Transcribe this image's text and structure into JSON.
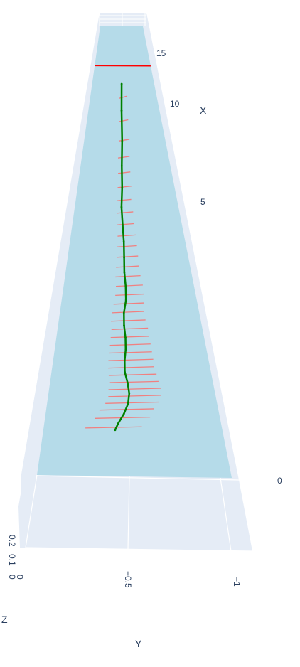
{
  "chart_data": {
    "type": "scatter3d",
    "axes": {
      "x": {
        "title": "X",
        "range": [
          0,
          16.8
        ],
        "ticks": [
          "0",
          "5",
          "10",
          "15"
        ]
      },
      "y": {
        "title": "Y",
        "range": [
          0,
          -1.2
        ],
        "ticks": [
          "0",
          "−0.5",
          "−1"
        ]
      },
      "z": {
        "title": "Z",
        "range": [
          0,
          0.25
        ],
        "ticks": [
          "0",
          "0.1",
          "0.2"
        ]
      }
    },
    "colors": {
      "scene_bg": "#e5ecf6",
      "grid": "#ffffff",
      "plane": "#add8e6",
      "path": "#008000",
      "vectors": "#f08080",
      "boundary": "#ff0000"
    },
    "plane": {
      "name": "ground plane",
      "z": 0
    },
    "boundary_line": {
      "x": 16.6,
      "y_range": [
        0,
        -1.2
      ]
    },
    "path": {
      "x": [
        3.0,
        3.4,
        4.0,
        4.6,
        5.2,
        5.8,
        6.4,
        7.0,
        7.6,
        8.2,
        8.8,
        9.4,
        10.0,
        10.6,
        11.2,
        11.8,
        12.4,
        13.0,
        13.6,
        14.2,
        14.8,
        15.4,
        16.0,
        16.4
      ],
      "y": [
        -0.48,
        -0.5,
        -0.54,
        -0.57,
        -0.58,
        -0.57,
        -0.55,
        -0.55,
        -0.56,
        -0.56,
        -0.55,
        -0.55,
        -0.57,
        -0.57,
        -0.56,
        -0.56,
        -0.56,
        -0.55,
        -0.54,
        -0.55,
        -0.55,
        -0.56,
        -0.56,
        -0.57
      ]
    },
    "vectors": [
      {
        "x": 3.1,
        "y": -0.43,
        "dx": 0.8,
        "dy": 0.3
      },
      {
        "x": 3.7,
        "y": -0.49,
        "dx": 0.8,
        "dy": 0.3
      },
      {
        "x": 4.2,
        "y": -0.52,
        "dx": 0.8,
        "dy": 0.3
      },
      {
        "x": 4.6,
        "y": -0.56,
        "dx": 0.8,
        "dy": 0.3
      },
      {
        "x": 5.0,
        "y": -0.58,
        "dx": 0.8,
        "dy": 0.3
      },
      {
        "x": 5.4,
        "y": -0.58,
        "dx": 0.8,
        "dy": 0.3
      },
      {
        "x": 5.8,
        "y": -0.58,
        "dx": 0.7,
        "dy": 0.28
      },
      {
        "x": 6.2,
        "y": -0.57,
        "dx": 0.7,
        "dy": 0.28
      },
      {
        "x": 6.6,
        "y": -0.56,
        "dx": 0.7,
        "dy": 0.27
      },
      {
        "x": 7.0,
        "y": -0.56,
        "dx": 0.7,
        "dy": 0.27
      },
      {
        "x": 7.4,
        "y": -0.56,
        "dx": 0.65,
        "dy": 0.26
      },
      {
        "x": 7.8,
        "y": -0.56,
        "dx": 0.65,
        "dy": 0.25
      },
      {
        "x": 8.2,
        "y": -0.56,
        "dx": 0.6,
        "dy": 0.24
      },
      {
        "x": 8.6,
        "y": -0.56,
        "dx": 0.6,
        "dy": 0.23
      },
      {
        "x": 9.0,
        "y": -0.55,
        "dx": 0.55,
        "dy": 0.22
      },
      {
        "x": 9.4,
        "y": -0.55,
        "dx": 0.55,
        "dy": 0.21
      },
      {
        "x": 9.8,
        "y": -0.56,
        "dx": 0.5,
        "dy": 0.2
      },
      {
        "x": 10.2,
        "y": -0.57,
        "dx": 0.5,
        "dy": 0.19
      },
      {
        "x": 10.6,
        "y": -0.57,
        "dx": 0.45,
        "dy": 0.18
      },
      {
        "x": 11.0,
        "y": -0.56,
        "dx": 0.45,
        "dy": 0.17
      },
      {
        "x": 11.4,
        "y": -0.56,
        "dx": 0.42,
        "dy": 0.16
      },
      {
        "x": 11.8,
        "y": -0.56,
        "dx": 0.4,
        "dy": 0.15
      },
      {
        "x": 12.2,
        "y": -0.56,
        "dx": 0.38,
        "dy": 0.14
      },
      {
        "x": 12.6,
        "y": -0.56,
        "dx": 0.36,
        "dy": 0.13
      },
      {
        "x": 13.0,
        "y": -0.55,
        "dx": 0.34,
        "dy": 0.12
      },
      {
        "x": 13.4,
        "y": -0.55,
        "dx": 0.32,
        "dy": 0.12
      },
      {
        "x": 13.8,
        "y": -0.54,
        "dx": 0.3,
        "dy": 0.11
      },
      {
        "x": 14.2,
        "y": -0.55,
        "dx": 0.3,
        "dy": 0.11
      },
      {
        "x": 14.6,
        "y": -0.55,
        "dx": 0.28,
        "dy": 0.1
      },
      {
        "x": 15.0,
        "y": -0.55,
        "dx": 0.28,
        "dy": 0.1
      },
      {
        "x": 15.4,
        "y": -0.56,
        "dx": 0.26,
        "dy": 0.1
      },
      {
        "x": 15.8,
        "y": -0.56,
        "dx": 0.24,
        "dy": 0.09
      },
      {
        "x": 16.2,
        "y": -0.56,
        "dx": 0.22,
        "dy": 0.08
      }
    ]
  }
}
